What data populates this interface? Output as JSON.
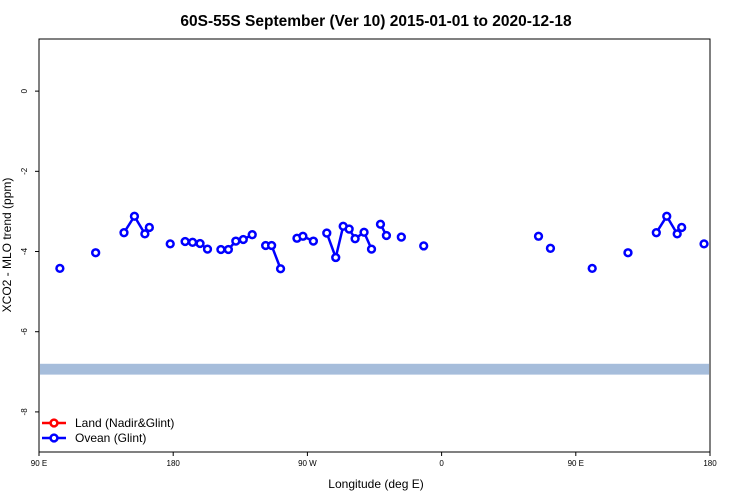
{
  "chart_data": {
    "type": "scatter",
    "title": "60S-55S September (Ver 10)   2015-01-01 to 2020-12-18",
    "xlabel": "Longitude (deg E)",
    "ylabel": "XCO2 - MLO trend (ppm)",
    "xlim": [
      90,
      540
    ],
    "ylim": [
      -9.0,
      1.3
    ],
    "x_ticks": [
      {
        "value": 90,
        "label": "90 E"
      },
      {
        "value": 180,
        "label": "180"
      },
      {
        "value": 270,
        "label": "90 W"
      },
      {
        "value": 360,
        "label": "0"
      },
      {
        "value": 450,
        "label": "90 E"
      },
      {
        "value": 540,
        "label": "180"
      }
    ],
    "y_ticks": [
      {
        "value": 0,
        "label": "0"
      },
      {
        "value": -2,
        "label": "-2"
      },
      {
        "value": -4,
        "label": "-4"
      },
      {
        "value": -6,
        "label": "-6"
      },
      {
        "value": -8,
        "label": "-8"
      }
    ],
    "band": {
      "ymin": -7.07,
      "ymax": -6.8,
      "color": "#a6bddb"
    },
    "legend_position": "bottom-left",
    "grid": false,
    "series": [
      {
        "name": "Land (Nadir&Glint)",
        "color": "#ff0000",
        "segments": []
      },
      {
        "name": "Ovean (Glint)",
        "color": "#0000ff",
        "segments": [
          [
            [
              104,
              -4.42
            ]
          ],
          [
            [
              128,
              -4.03
            ]
          ],
          [
            [
              147,
              -3.53
            ],
            [
              154,
              -3.12
            ],
            [
              161,
              -3.56
            ],
            [
              164,
              -3.4
            ]
          ],
          [
            [
              178,
              -3.81
            ]
          ],
          [
            [
              188,
              -3.75
            ],
            [
              193,
              -3.77
            ],
            [
              198,
              -3.8
            ],
            [
              203,
              -3.94
            ]
          ],
          [
            [
              212,
              -3.95
            ],
            [
              217,
              -3.95
            ],
            [
              222,
              -3.74
            ],
            [
              227,
              -3.7
            ],
            [
              233,
              -3.58
            ]
          ],
          [
            [
              242,
              -3.85
            ],
            [
              246,
              -3.85
            ],
            [
              252,
              -4.43
            ]
          ],
          [
            [
              263,
              -3.67
            ],
            [
              267,
              -3.62
            ],
            [
              274,
              -3.74
            ]
          ],
          [
            [
              283,
              -3.54
            ],
            [
              289,
              -4.15
            ],
            [
              294,
              -3.37
            ],
            [
              298,
              -3.44
            ],
            [
              302,
              -3.68
            ],
            [
              308,
              -3.52
            ],
            [
              313,
              -3.94
            ]
          ],
          [
            [
              319,
              -3.32
            ],
            [
              323,
              -3.6
            ]
          ],
          [
            [
              333,
              -3.64
            ]
          ],
          [
            [
              348,
              -3.86
            ]
          ],
          [
            [
              425,
              -3.62
            ]
          ],
          [
            [
              433,
              -3.92
            ]
          ],
          [
            [
              461,
              -4.42
            ]
          ],
          [
            [
              485,
              -4.03
            ]
          ],
          [
            [
              504,
              -3.53
            ],
            [
              511,
              -3.12
            ],
            [
              518,
              -3.56
            ],
            [
              521,
              -3.4
            ]
          ],
          [
            [
              536,
              -3.81
            ]
          ]
        ]
      }
    ]
  }
}
